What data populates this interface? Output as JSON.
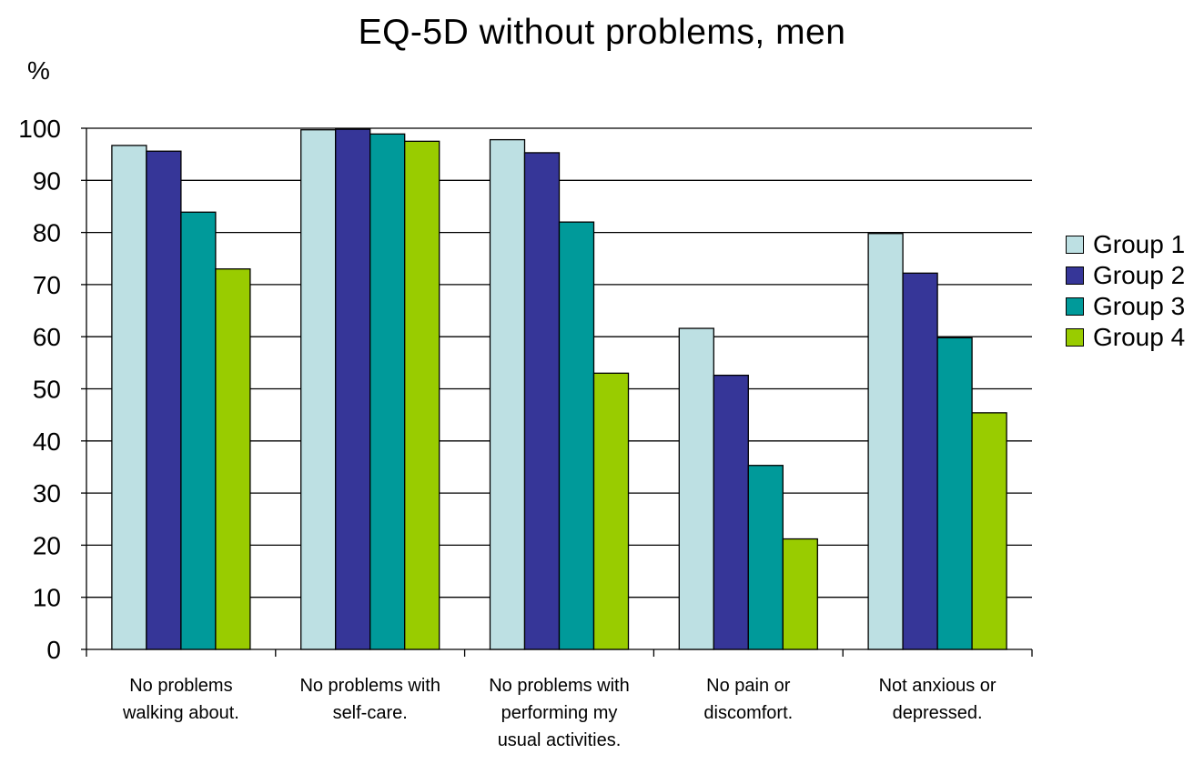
{
  "chart_data": {
    "type": "bar",
    "title": "EQ-5D without problems, men",
    "ylabel": "%",
    "xlabel": "",
    "ylim": [
      0,
      100
    ],
    "yticks": [
      0,
      10,
      20,
      30,
      40,
      50,
      60,
      70,
      80,
      90,
      100
    ],
    "grid": true,
    "legend_position": "right",
    "categories": [
      [
        "No problems",
        "walking about."
      ],
      [
        "No problems with",
        "self-care."
      ],
      [
        "No problems with",
        "performing my",
        "usual activities."
      ],
      [
        "No pain or",
        "discomfort."
      ],
      [
        "Not anxious or",
        "depressed."
      ]
    ],
    "series": [
      {
        "name": "Group 1",
        "color": "#bde0e3",
        "values": [
          96.7,
          99.7,
          97.8,
          61.6,
          79.8
        ]
      },
      {
        "name": "Group 2",
        "color": "#363698",
        "values": [
          95.6,
          99.8,
          95.3,
          52.6,
          72.2
        ]
      },
      {
        "name": "Group 3",
        "color": "#009a9a",
        "values": [
          83.9,
          98.9,
          82.0,
          35.3,
          59.8
        ]
      },
      {
        "name": "Group 4",
        "color": "#99cc00",
        "values": [
          73.0,
          97.5,
          53.0,
          21.2,
          45.4
        ]
      }
    ]
  }
}
